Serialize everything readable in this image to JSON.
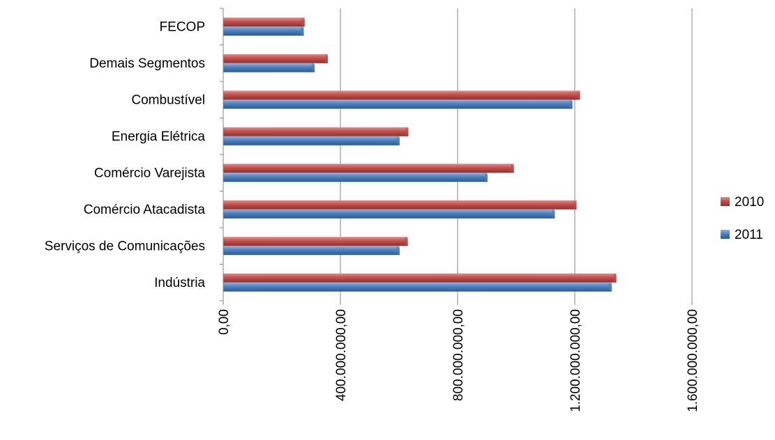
{
  "chart_data": {
    "type": "bar",
    "orientation": "horizontal",
    "title": "",
    "xlabel": "",
    "ylabel": "",
    "categories": [
      "FECOP",
      "Demais Segmentos",
      "Combustível",
      "Energia Elétrica",
      "Comércio Varejista",
      "Comércio Atacadista",
      "Serviços de Comunicações",
      "Indústria"
    ],
    "series": [
      {
        "name": "2010",
        "color": "#c0504d",
        "values": [
          278000000,
          357000000,
          1218000000,
          632000000,
          992000000,
          1206000000,
          630000000,
          1342000000
        ]
      },
      {
        "name": "2011",
        "color": "#4f81bd",
        "values": [
          275000000,
          312000000,
          1192000000,
          602000000,
          902000000,
          1132000000,
          602000000,
          1326000000
        ]
      }
    ],
    "xlim": [
      0,
      1600000000
    ],
    "x_ticks": [
      "0,00",
      "400.000.000,00",
      "800.000.000,00",
      "1.200.000.000,00",
      "1.600.000.000,00"
    ],
    "grid": true,
    "legend": "right"
  }
}
